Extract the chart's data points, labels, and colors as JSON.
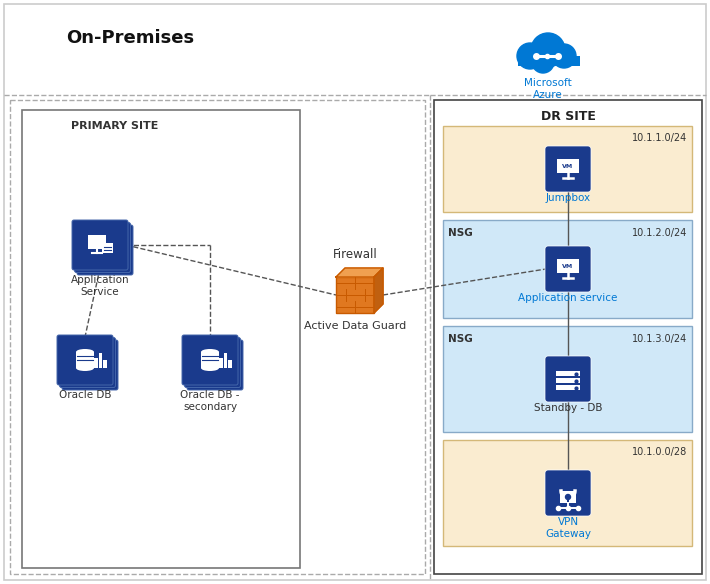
{
  "title_onprem": "On-Premises",
  "title_azure": "Microsoft\nAzure",
  "primary_site_label": "PRIMARY SITE",
  "dr_site_label": "DR SITE",
  "firewall_label": "Firewall",
  "active_data_guard_label": "Active Data Guard",
  "app_service_label": "Application\nService",
  "oracle_db_label": "Oracle DB",
  "oracle_db_secondary_label": "Oracle DB -\nsecondary",
  "jumpbox_label": "Jumpbox",
  "jumpbox_cidr": "10.1.1.0/24",
  "app_service_azure_label": "Application service",
  "app_service_cidr": "10.1.2.0/24",
  "standby_db_label": "Standby - DB",
  "standby_cidr": "10.1.3.0/24",
  "vpn_gateway_label": "VPN\nGateway",
  "vpn_cidr": "10.1.0.0/28",
  "bg_color": "#ffffff",
  "icon_blue": "#1a3a8c",
  "azure_blue": "#0078d4",
  "orange_dark": "#c85a00",
  "orange_mid": "#e07820",
  "orange_light": "#f0a050",
  "beige_fill": "#faecd0",
  "beige_border": "#d4b878",
  "nsg_fill": "#d0e8f8",
  "nsg_border": "#88aac8",
  "icon_border": "#4466aa"
}
